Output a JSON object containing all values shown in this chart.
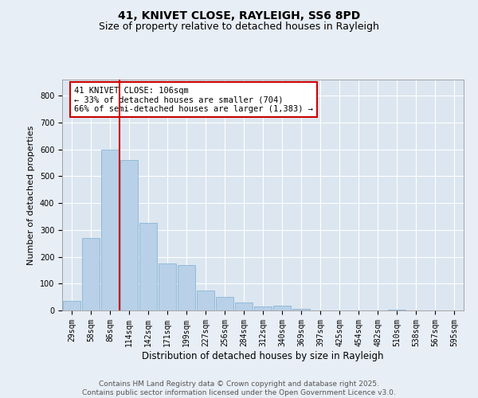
{
  "title1": "41, KNIVET CLOSE, RAYLEIGH, SS6 8PD",
  "title2": "Size of property relative to detached houses in Rayleigh",
  "xlabel": "Distribution of detached houses by size in Rayleigh",
  "ylabel": "Number of detached properties",
  "bar_labels": [
    "29sqm",
    "58sqm",
    "86sqm",
    "114sqm",
    "142sqm",
    "171sqm",
    "199sqm",
    "227sqm",
    "256sqm",
    "284sqm",
    "312sqm",
    "340sqm",
    "369sqm",
    "397sqm",
    "425sqm",
    "454sqm",
    "482sqm",
    "510sqm",
    "538sqm",
    "567sqm",
    "595sqm"
  ],
  "bar_values": [
    35,
    270,
    600,
    560,
    325,
    175,
    170,
    75,
    50,
    30,
    15,
    18,
    5,
    0,
    0,
    0,
    0,
    4,
    0,
    0,
    0
  ],
  "bar_color": "#b8d0e8",
  "bar_edge_color": "#7aaed0",
  "property_line_color": "#cc0000",
  "annotation_text": "41 KNIVET CLOSE: 106sqm\n← 33% of detached houses are smaller (704)\n66% of semi-detached houses are larger (1,383) →",
  "annotation_box_color": "#cc0000",
  "ylim": [
    0,
    860
  ],
  "yticks": [
    0,
    100,
    200,
    300,
    400,
    500,
    600,
    700,
    800
  ],
  "background_color": "#e8eef5",
  "plot_background": "#dce6f0",
  "footer_text": "Contains HM Land Registry data © Crown copyright and database right 2025.\nContains public sector information licensed under the Open Government Licence v3.0.",
  "title1_fontsize": 10,
  "title2_fontsize": 9,
  "xlabel_fontsize": 8.5,
  "ylabel_fontsize": 8,
  "tick_fontsize": 7,
  "footer_fontsize": 6.5,
  "annotation_fontsize": 7.5
}
